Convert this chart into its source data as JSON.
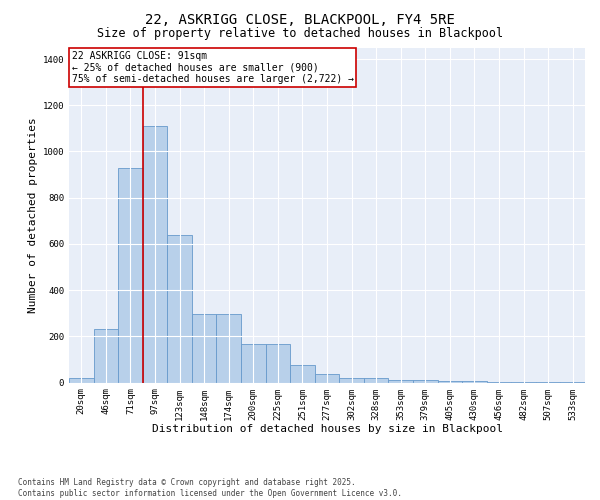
{
  "title_line1": "22, ASKRIGG CLOSE, BLACKPOOL, FY4 5RE",
  "title_line2": "Size of property relative to detached houses in Blackpool",
  "xlabel": "Distribution of detached houses by size in Blackpool",
  "ylabel": "Number of detached properties",
  "categories": [
    "20sqm",
    "46sqm",
    "71sqm",
    "97sqm",
    "123sqm",
    "148sqm",
    "174sqm",
    "200sqm",
    "225sqm",
    "251sqm",
    "277sqm",
    "302sqm",
    "328sqm",
    "353sqm",
    "379sqm",
    "405sqm",
    "430sqm",
    "456sqm",
    "482sqm",
    "507sqm",
    "533sqm"
  ],
  "values": [
    20,
    230,
    930,
    1110,
    640,
    295,
    295,
    165,
    165,
    75,
    35,
    20,
    20,
    10,
    10,
    5,
    5,
    3,
    3,
    2,
    2
  ],
  "bar_color": "#b8d0ea",
  "bar_edge_color": "#6699cc",
  "background_color": "#e8eef8",
  "grid_color": "#d0d8e8",
  "annotation_box_text": "22 ASKRIGG CLOSE: 91sqm\n← 25% of detached houses are smaller (900)\n75% of semi-detached houses are larger (2,722) →",
  "annotation_box_color": "#cc0000",
  "vline_color": "#cc0000",
  "vline_x": 2.5,
  "ylim": [
    0,
    1450
  ],
  "yticks": [
    0,
    200,
    400,
    600,
    800,
    1000,
    1200,
    1400
  ],
  "footnote": "Contains HM Land Registry data © Crown copyright and database right 2025.\nContains public sector information licensed under the Open Government Licence v3.0.",
  "title_fontsize": 10,
  "subtitle_fontsize": 8.5,
  "axis_label_fontsize": 8,
  "tick_fontsize": 6.5,
  "annotation_fontsize": 7,
  "footnote_fontsize": 5.5
}
